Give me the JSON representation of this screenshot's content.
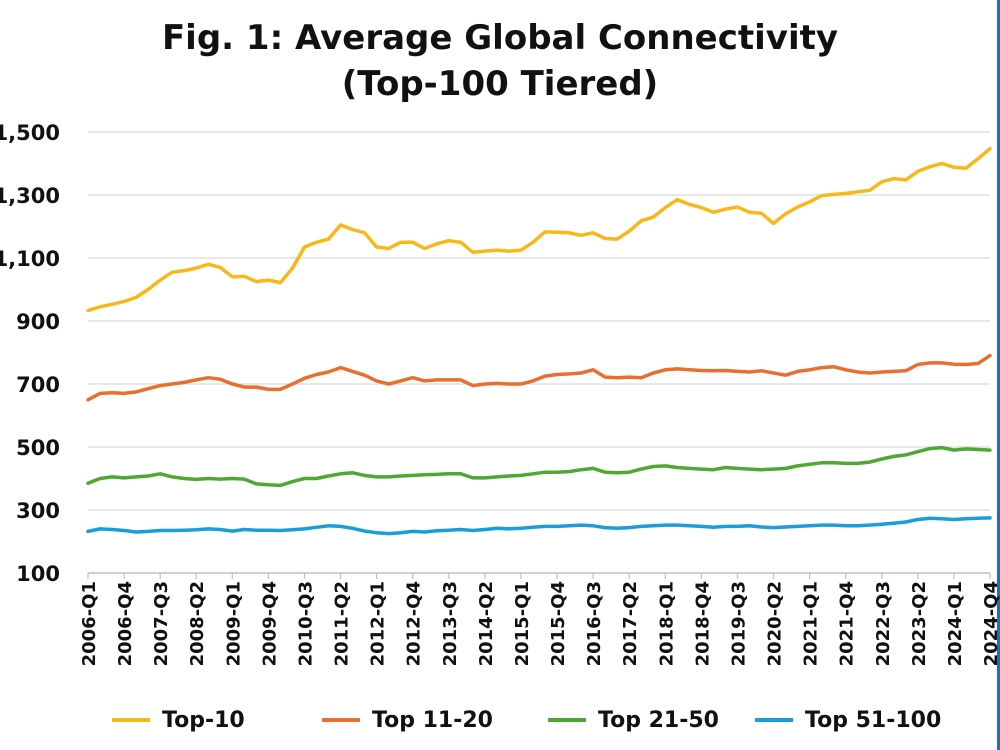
{
  "chart_data": {
    "type": "line",
    "title": "Fig. 1: Average Global Connectivity",
    "subtitle": "(Top-100 Tiered)",
    "xlabel": "",
    "ylabel": "",
    "ylim": [
      100,
      1500
    ],
    "yticks": [
      "100",
      "300",
      "500",
      "700",
      "900",
      "1,100",
      "1,300",
      "1,500"
    ],
    "ytick_values": [
      100,
      300,
      500,
      700,
      900,
      1100,
      1300,
      1500
    ],
    "x_tick_labels": [
      "2006-Q1",
      "2006-Q4",
      "2007-Q3",
      "2008-Q2",
      "2009-Q1",
      "2009-Q4",
      "2010-Q3",
      "2011-Q2",
      "2012-Q1",
      "2012-Q4",
      "2013-Q3",
      "2014-Q2",
      "2015-Q1",
      "2015-Q4",
      "2016-Q3",
      "2017-Q2",
      "2018-Q1",
      "2018-Q4",
      "2019-Q3",
      "2020-Q2",
      "2021-Q1",
      "2021-Q4",
      "2022-Q3",
      "2023-Q2",
      "2024-Q1",
      "2024-Q4"
    ],
    "x": [
      "2006-Q1",
      "2006-Q2",
      "2006-Q3",
      "2006-Q4",
      "2007-Q1",
      "2007-Q2",
      "2007-Q3",
      "2007-Q4",
      "2008-Q1",
      "2008-Q2",
      "2008-Q3",
      "2008-Q4",
      "2009-Q1",
      "2009-Q2",
      "2009-Q3",
      "2009-Q4",
      "2010-Q1",
      "2010-Q2",
      "2010-Q3",
      "2010-Q4",
      "2011-Q1",
      "2011-Q2",
      "2011-Q3",
      "2011-Q4",
      "2012-Q1",
      "2012-Q2",
      "2012-Q3",
      "2012-Q4",
      "2013-Q1",
      "2013-Q2",
      "2013-Q3",
      "2013-Q4",
      "2014-Q1",
      "2014-Q2",
      "2014-Q3",
      "2014-Q4",
      "2015-Q1",
      "2015-Q2",
      "2015-Q3",
      "2015-Q4",
      "2016-Q1",
      "2016-Q2",
      "2016-Q3",
      "2016-Q4",
      "2017-Q1",
      "2017-Q2",
      "2017-Q3",
      "2017-Q4",
      "2018-Q1",
      "2018-Q2",
      "2018-Q3",
      "2018-Q4",
      "2019-Q1",
      "2019-Q2",
      "2019-Q3",
      "2019-Q4",
      "2020-Q1",
      "2020-Q2",
      "2020-Q3",
      "2020-Q4",
      "2021-Q1",
      "2021-Q2",
      "2021-Q3",
      "2021-Q4",
      "2022-Q1",
      "2022-Q2",
      "2022-Q3",
      "2022-Q4",
      "2023-Q1",
      "2023-Q2",
      "2023-Q3",
      "2023-Q4",
      "2024-Q1",
      "2024-Q2",
      "2024-Q3",
      "2024-Q4"
    ],
    "series": [
      {
        "name": "Top-10",
        "color": "#f7b81a",
        "values": [
          933,
          945,
          953,
          962,
          975,
          1000,
          1030,
          1055,
          1060,
          1068,
          1080,
          1070,
          1040,
          1042,
          1025,
          1030,
          1022,
          1068,
          1135,
          1150,
          1160,
          1205,
          1190,
          1180,
          1135,
          1130,
          1150,
          1150,
          1130,
          1145,
          1155,
          1150,
          1118,
          1122,
          1125,
          1122,
          1125,
          1150,
          1183,
          1182,
          1180,
          1172,
          1180,
          1162,
          1160,
          1185,
          1218,
          1230,
          1260,
          1285,
          1270,
          1260,
          1245,
          1255,
          1262,
          1245,
          1242,
          1210,
          1240,
          1262,
          1278,
          1298,
          1302,
          1305,
          1310,
          1315,
          1342,
          1352,
          1348,
          1375,
          1390,
          1400,
          1388,
          1385,
          1415,
          1447
        ]
      },
      {
        "name": "Top 11-20",
        "color": "#e86f2e",
        "values": [
          650,
          670,
          672,
          670,
          675,
          685,
          695,
          700,
          705,
          713,
          720,
          715,
          700,
          690,
          690,
          683,
          683,
          700,
          718,
          730,
          738,
          752,
          740,
          728,
          710,
          700,
          710,
          720,
          710,
          713,
          713,
          713,
          695,
          700,
          702,
          700,
          700,
          710,
          725,
          730,
          732,
          735,
          745,
          722,
          720,
          722,
          720,
          735,
          745,
          748,
          745,
          743,
          742,
          743,
          740,
          738,
          742,
          735,
          728,
          740,
          745,
          752,
          755,
          745,
          738,
          735,
          738,
          740,
          742,
          762,
          767,
          767,
          763,
          762,
          765,
          790
        ]
      },
      {
        "name": "Top 21-50",
        "color": "#4fa833",
        "values": [
          385,
          400,
          405,
          402,
          405,
          408,
          415,
          405,
          400,
          397,
          400,
          398,
          400,
          398,
          383,
          380,
          378,
          390,
          400,
          400,
          408,
          415,
          418,
          410,
          405,
          405,
          408,
          410,
          412,
          413,
          415,
          415,
          402,
          402,
          405,
          408,
          410,
          415,
          420,
          420,
          422,
          428,
          432,
          420,
          418,
          420,
          430,
          438,
          440,
          435,
          432,
          430,
          428,
          435,
          432,
          430,
          428,
          430,
          432,
          440,
          445,
          450,
          450,
          448,
          448,
          452,
          462,
          470,
          475,
          485,
          495,
          498,
          490,
          494,
          492,
          490
        ]
      },
      {
        "name": "Top 51-100",
        "color": "#1a9ed9",
        "values": [
          232,
          240,
          238,
          235,
          230,
          232,
          235,
          235,
          236,
          237,
          240,
          238,
          233,
          238,
          236,
          236,
          235,
          237,
          240,
          245,
          250,
          248,
          242,
          233,
          228,
          225,
          228,
          232,
          230,
          234,
          236,
          238,
          235,
          238,
          242,
          240,
          242,
          245,
          248,
          248,
          250,
          252,
          250,
          244,
          242,
          244,
          248,
          250,
          252,
          252,
          250,
          248,
          245,
          248,
          248,
          250,
          246,
          244,
          246,
          248,
          250,
          252,
          252,
          250,
          250,
          252,
          255,
          258,
          262,
          270,
          274,
          272,
          270,
          272,
          274,
          275
        ]
      }
    ],
    "legend_position": "bottom",
    "grid": true
  }
}
